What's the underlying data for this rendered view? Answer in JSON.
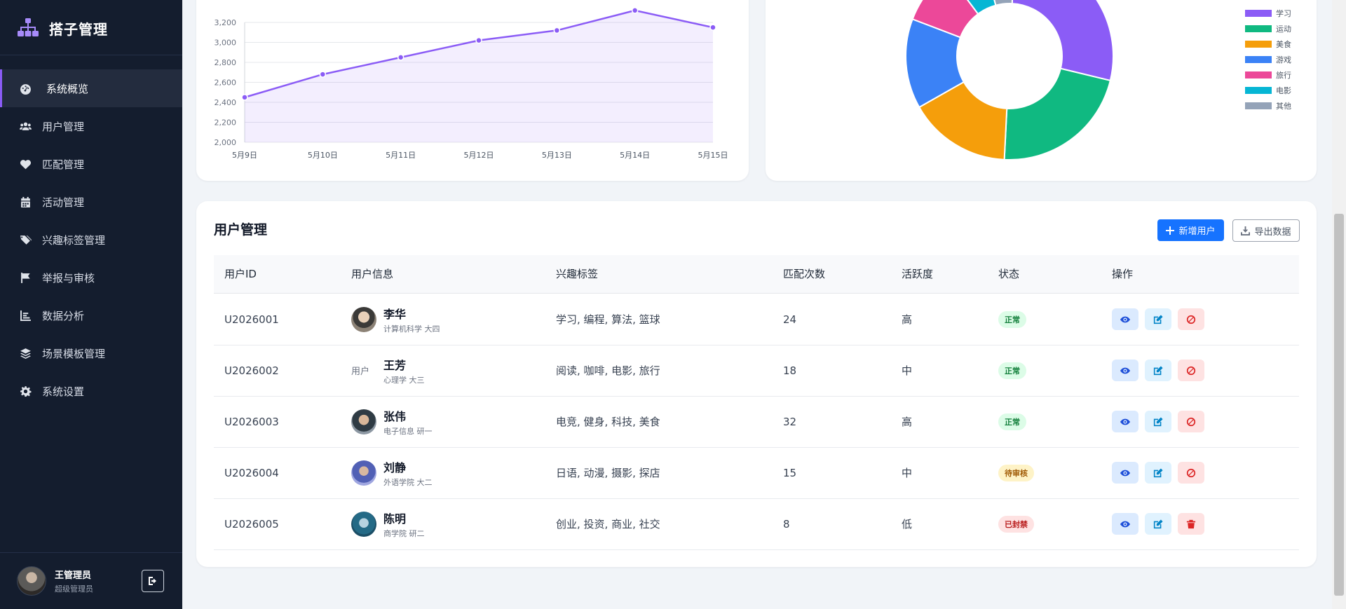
{
  "app": {
    "title": "搭子管理"
  },
  "sidebar": {
    "items": [
      {
        "label": "系统概览",
        "icon": "dashboard-icon",
        "active": true
      },
      {
        "label": "用户管理",
        "icon": "users-icon"
      },
      {
        "label": "匹配管理",
        "icon": "heart-icon"
      },
      {
        "label": "活动管理",
        "icon": "calendar-icon"
      },
      {
        "label": "兴趣标签管理",
        "icon": "tags-icon"
      },
      {
        "label": "举报与审核",
        "icon": "flag-icon"
      },
      {
        "label": "数据分析",
        "icon": "chart-icon"
      },
      {
        "label": "场景模板管理",
        "icon": "layers-icon"
      },
      {
        "label": "系统设置",
        "icon": "gear-icon"
      }
    ],
    "user": {
      "name": "王管理员",
      "role": "超级管理员"
    }
  },
  "chart_data": [
    {
      "type": "area",
      "categories": [
        "5月9日",
        "5月10日",
        "5月11日",
        "5月12日",
        "5月13日",
        "5月14日",
        "5月15日"
      ],
      "values": [
        2450,
        2680,
        2850,
        3020,
        3120,
        3320,
        3150
      ],
      "yticks": [
        2000,
        2200,
        2400,
        2600,
        2800,
        3000,
        3200
      ],
      "ylim": [
        2000,
        3200
      ],
      "ytick_labels": [
        "2,000",
        "2,200",
        "2,400",
        "2,600",
        "2,800",
        "3,000",
        "3,200"
      ],
      "color": "#8b5cf6"
    },
    {
      "type": "pie",
      "slices": [
        {
          "label": "学习",
          "value": 28,
          "color": "#8b5cf6"
        },
        {
          "label": "运动",
          "value": 22,
          "color": "#10b981"
        },
        {
          "label": "美食",
          "value": 16,
          "color": "#f59e0b"
        },
        {
          "label": "游戏",
          "value": 14,
          "color": "#3b82f6"
        },
        {
          "label": "旅行",
          "value": 9,
          "color": "#ec4899"
        },
        {
          "label": "电影",
          "value": 6,
          "color": "#06b6d4"
        },
        {
          "label": "其他",
          "value": 5,
          "color": "#94a3b8"
        }
      ],
      "legend_position": "right"
    }
  ],
  "users_section": {
    "title": "用户管理",
    "add_label": "新增用户",
    "export_label": "导出数据",
    "columns": [
      "用户ID",
      "用户信息",
      "兴趣标签",
      "匹配次数",
      "活跃度",
      "状态",
      "操作"
    ],
    "rows": [
      {
        "id": "U2026001",
        "name": "李华",
        "sub": "计算机科学 大四",
        "tags": "学习, 编程, 算法, 篮球",
        "matches": "24",
        "activity": "高",
        "status": "正常"
      },
      {
        "id": "U2026002",
        "name": "王芳",
        "sub": "心理学 大三",
        "tags": "阅读, 咖啡, 电影, 旅行",
        "matches": "18",
        "activity": "中",
        "status": "正常"
      },
      {
        "id": "U2026003",
        "name": "张伟",
        "sub": "电子信息 研一",
        "tags": "电竞, 健身, 科技, 美食",
        "matches": "32",
        "activity": "高",
        "status": "正常"
      },
      {
        "id": "U2026004",
        "name": "刘静",
        "sub": "外语学院 大二",
        "tags": "日语, 动漫, 摄影, 探店",
        "matches": "15",
        "activity": "中",
        "status": "待审核"
      },
      {
        "id": "U2026005",
        "name": "陈明",
        "sub": "商学院 研二",
        "tags": "创业, 投资, 商业, 社交",
        "matches": "8",
        "activity": "低",
        "status": "已封禁"
      }
    ]
  }
}
